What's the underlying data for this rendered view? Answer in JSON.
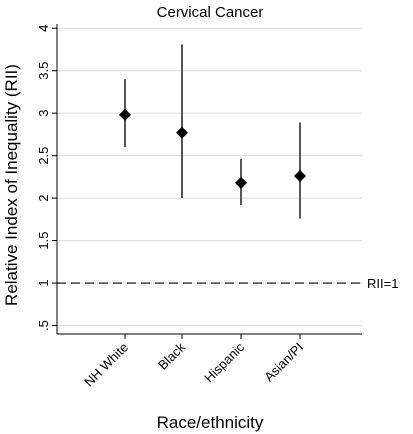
{
  "chart_data": {
    "type": "scatter",
    "title": "Cervical Cancer",
    "xlabel": "Race/ethnicity",
    "ylabel": "Relative Index of Inequality (RII)",
    "categories": [
      "NH White",
      "Black",
      "Hispanic",
      "Asian/PI"
    ],
    "points": [
      {
        "category": "NH White",
        "estimate": 2.98,
        "lower": 2.6,
        "upper": 3.4
      },
      {
        "category": "Black",
        "estimate": 2.77,
        "lower": 2.0,
        "upper": 3.81
      },
      {
        "category": "Hispanic",
        "estimate": 2.18,
        "lower": 1.92,
        "upper": 2.46
      },
      {
        "category": "Asian/PI",
        "estimate": 2.26,
        "lower": 1.76,
        "upper": 2.89
      }
    ],
    "ylim": [
      0.4,
      4.05
    ],
    "yticks": [
      0.5,
      1,
      1.5,
      2,
      2.5,
      3,
      3.5,
      4
    ],
    "ytick_labels": [
      ".5",
      "1",
      "1.5",
      "2",
      "2.5",
      "3",
      "3.5",
      "4"
    ],
    "reference_line": {
      "value": 1,
      "label": "RII=1",
      "style": "dashed"
    },
    "grid": true,
    "marker": "diamond",
    "colors": {
      "marker": "#000000",
      "errorbar": "#555555",
      "grid": "#dcdcdc",
      "reference": "#000000"
    }
  }
}
